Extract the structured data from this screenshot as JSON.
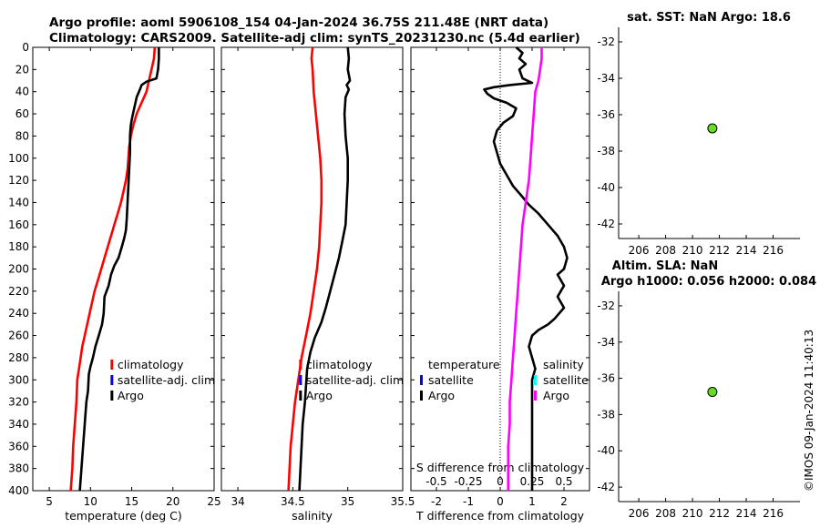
{
  "header": {
    "line1": "Argo profile: aoml 5906108_154 04-Jan-2024 36.75S 211.48E (NRT data)",
    "line2": "Climatology: CARS2009. Satellite-adj clim: synTS_20231230.nc (5.4d earlier)"
  },
  "watermark": "©IMOS 09-Jan-2024 11:40:13",
  "colors": {
    "red": "#ff0000",
    "blue": "#0000ff",
    "black": "#000000",
    "magenta": "#ff00ff",
    "cyan": "#00ffff",
    "marker": "#66dd22"
  },
  "chart_data": [
    {
      "id": "temp",
      "type": "line",
      "xlabel": "temperature (deg C)",
      "xlim": [
        3,
        25
      ],
      "xticks": [
        5,
        10,
        15,
        20,
        25
      ],
      "ylim": [
        0,
        400
      ],
      "yticks": [
        0,
        20,
        40,
        60,
        80,
        100,
        120,
        140,
        160,
        180,
        200,
        220,
        240,
        260,
        280,
        300,
        320,
        340,
        360,
        380,
        400
      ],
      "legend": [
        "climatology",
        "satellite-adj. clim",
        "Argo"
      ],
      "series": [
        {
          "name": "climatology",
          "color": "red",
          "points": [
            [
              17.8,
              0
            ],
            [
              17.7,
              10
            ],
            [
              17.4,
              20
            ],
            [
              17.1,
              30
            ],
            [
              16.8,
              40
            ],
            [
              16.2,
              50
            ],
            [
              15.6,
              60
            ],
            [
              15.2,
              70
            ],
            [
              14.9,
              80
            ],
            [
              14.7,
              90
            ],
            [
              14.6,
              100
            ],
            [
              14.5,
              110
            ],
            [
              14.3,
              120
            ],
            [
              14.0,
              130
            ],
            [
              13.7,
              140
            ],
            [
              13.3,
              150
            ],
            [
              12.9,
              160
            ],
            [
              12.5,
              170
            ],
            [
              12.1,
              180
            ],
            [
              11.7,
              190
            ],
            [
              11.3,
              200
            ],
            [
              10.9,
              210
            ],
            [
              10.5,
              220
            ],
            [
              10.2,
              230
            ],
            [
              9.9,
              240
            ],
            [
              9.6,
              250
            ],
            [
              9.3,
              260
            ],
            [
              9.0,
              270
            ],
            [
              8.8,
              280
            ],
            [
              8.6,
              290
            ],
            [
              8.4,
              300
            ],
            [
              8.3,
              320
            ],
            [
              8.1,
              340
            ],
            [
              7.9,
              360
            ],
            [
              7.8,
              380
            ],
            [
              7.6,
              400
            ]
          ]
        },
        {
          "name": "Argo",
          "color": "black",
          "points": [
            [
              18.3,
              0
            ],
            [
              18.3,
              10
            ],
            [
              18.2,
              20
            ],
            [
              18.0,
              28
            ],
            [
              16.8,
              31
            ],
            [
              16.2,
              34
            ],
            [
              16.0,
              38
            ],
            [
              15.6,
              45
            ],
            [
              15.3,
              55
            ],
            [
              15.1,
              62
            ],
            [
              14.9,
              70
            ],
            [
              14.8,
              80
            ],
            [
              14.8,
              95
            ],
            [
              14.7,
              110
            ],
            [
              14.6,
              125
            ],
            [
              14.5,
              140
            ],
            [
              14.4,
              155
            ],
            [
              14.3,
              165
            ],
            [
              14.1,
              172
            ],
            [
              13.8,
              180
            ],
            [
              13.4,
              190
            ],
            [
              12.9,
              197
            ],
            [
              12.5,
              205
            ],
            [
              12.2,
              215
            ],
            [
              11.7,
              225
            ],
            [
              11.6,
              240
            ],
            [
              11.4,
              250
            ],
            [
              11.0,
              260
            ],
            [
              10.6,
              270
            ],
            [
              10.3,
              280
            ],
            [
              10.0,
              288
            ],
            [
              9.8,
              295
            ],
            [
              9.7,
              310
            ],
            [
              9.5,
              320
            ],
            [
              9.3,
              340
            ],
            [
              9.1,
              360
            ],
            [
              8.9,
              380
            ],
            [
              8.7,
              400
            ]
          ]
        }
      ]
    },
    {
      "id": "sal",
      "type": "line",
      "xlabel": "salinity",
      "xlim": [
        33.85,
        35.5
      ],
      "xticks": [
        34,
        34.5,
        35,
        35.5
      ],
      "ylim": [
        0,
        400
      ],
      "yticks": [
        0,
        20,
        40,
        60,
        80,
        100,
        120,
        140,
        160,
        180,
        200,
        220,
        240,
        260,
        280,
        300,
        320,
        340,
        360,
        380,
        400
      ],
      "legend": [
        "climatology",
        "satellite-adj. clim",
        "Argo"
      ],
      "series": [
        {
          "name": "climatology",
          "color": "red",
          "points": [
            [
              34.68,
              0
            ],
            [
              34.67,
              10
            ],
            [
              34.68,
              20
            ],
            [
              34.69,
              40
            ],
            [
              34.71,
              60
            ],
            [
              34.73,
              80
            ],
            [
              34.75,
              100
            ],
            [
              34.76,
              120
            ],
            [
              34.76,
              140
            ],
            [
              34.75,
              160
            ],
            [
              34.74,
              180
            ],
            [
              34.72,
              200
            ],
            [
              34.69,
              220
            ],
            [
              34.66,
              240
            ],
            [
              34.62,
              260
            ],
            [
              34.58,
              280
            ],
            [
              34.55,
              300
            ],
            [
              34.52,
              320
            ],
            [
              34.5,
              340
            ],
            [
              34.48,
              360
            ],
            [
              34.47,
              380
            ],
            [
              34.46,
              400
            ]
          ]
        },
        {
          "name": "Argo",
          "color": "black",
          "points": [
            [
              35.0,
              0
            ],
            [
              35.01,
              10
            ],
            [
              35.0,
              20
            ],
            [
              35.02,
              30
            ],
            [
              34.99,
              34
            ],
            [
              35.01,
              38
            ],
            [
              34.98,
              45
            ],
            [
              34.97,
              60
            ],
            [
              34.98,
              80
            ],
            [
              35.0,
              100
            ],
            [
              35.0,
              120
            ],
            [
              34.99,
              140
            ],
            [
              34.98,
              160
            ],
            [
              34.95,
              175
            ],
            [
              34.92,
              190
            ],
            [
              34.88,
              205
            ],
            [
              34.84,
              220
            ],
            [
              34.8,
              235
            ],
            [
              34.76,
              248
            ],
            [
              34.7,
              262
            ],
            [
              34.66,
              275
            ],
            [
              34.63,
              290
            ],
            [
              34.62,
              305
            ],
            [
              34.61,
              320
            ],
            [
              34.59,
              340
            ],
            [
              34.58,
              360
            ],
            [
              34.57,
              380
            ],
            [
              34.56,
              400
            ]
          ]
        }
      ]
    },
    {
      "id": "diff",
      "type": "line",
      "xlabel": "T difference from climatology",
      "top_label": "S difference from climatology",
      "xlim": [
        -2.8,
        2.8
      ],
      "xticks": [
        -2,
        -1,
        0,
        1,
        2
      ],
      "top_ticks": [
        "-0.5",
        "-0.25",
        "0",
        "0.25",
        "0.5"
      ],
      "top_tick_x": [
        -2,
        -1,
        0,
        1,
        2
      ],
      "ylim": [
        0,
        400
      ],
      "yticks": [
        0,
        20,
        40,
        60,
        80,
        100,
        120,
        140,
        160,
        180,
        200,
        220,
        240,
        260,
        280,
        300,
        320,
        340,
        360,
        380,
        400
      ],
      "legend_left": [
        "temperature",
        "satellite",
        "Argo"
      ],
      "legend_right": [
        "salinity",
        "satellite",
        "Argo"
      ],
      "series": [
        {
          "name": "T diff Argo",
          "color": "black",
          "points": [
            [
              0.5,
              0
            ],
            [
              0.7,
              5
            ],
            [
              0.6,
              10
            ],
            [
              0.8,
              15
            ],
            [
              0.6,
              20
            ],
            [
              0.7,
              28
            ],
            [
              1.0,
              32
            ],
            [
              0.3,
              34
            ],
            [
              -0.2,
              36
            ],
            [
              -0.5,
              38
            ],
            [
              -0.4,
              42
            ],
            [
              -0.2,
              46
            ],
            [
              0.2,
              50
            ],
            [
              0.5,
              55
            ],
            [
              0.4,
              62
            ],
            [
              0.1,
              68
            ],
            [
              -0.1,
              75
            ],
            [
              -0.2,
              85
            ],
            [
              -0.1,
              95
            ],
            [
              0.0,
              105
            ],
            [
              0.2,
              115
            ],
            [
              0.4,
              125
            ],
            [
              0.7,
              135
            ],
            [
              0.9,
              142
            ],
            [
              1.2,
              150
            ],
            [
              1.5,
              160
            ],
            [
              1.8,
              170
            ],
            [
              2.0,
              180
            ],
            [
              2.1,
              190
            ],
            [
              2.0,
              200
            ],
            [
              1.8,
              205
            ],
            [
              2.0,
              215
            ],
            [
              1.8,
              225
            ],
            [
              2.0,
              235
            ],
            [
              1.7,
              245
            ],
            [
              1.5,
              250
            ],
            [
              1.2,
              255
            ],
            [
              1.0,
              260
            ],
            [
              0.9,
              270
            ],
            [
              1.0,
              280
            ],
            [
              1.1,
              290
            ],
            [
              1.0,
              300
            ],
            [
              1.0,
              320
            ],
            [
              1.0,
              340
            ],
            [
              1.0,
              360
            ],
            [
              1.0,
              380
            ],
            [
              1.0,
              400
            ]
          ]
        },
        {
          "name": "S diff Argo",
          "color": "magenta",
          "points": [
            [
              1.3,
              0
            ],
            [
              1.3,
              10
            ],
            [
              1.25,
              20
            ],
            [
              1.2,
              30
            ],
            [
              1.1,
              40
            ],
            [
              1.05,
              60
            ],
            [
              1.0,
              80
            ],
            [
              0.95,
              100
            ],
            [
              0.9,
              120
            ],
            [
              0.8,
              140
            ],
            [
              0.7,
              160
            ],
            [
              0.65,
              180
            ],
            [
              0.6,
              200
            ],
            [
              0.55,
              220
            ],
            [
              0.5,
              240
            ],
            [
              0.45,
              260
            ],
            [
              0.4,
              280
            ],
            [
              0.35,
              300
            ],
            [
              0.3,
              320
            ],
            [
              0.3,
              340
            ],
            [
              0.25,
              360
            ],
            [
              0.25,
              380
            ],
            [
              0.25,
              400
            ]
          ]
        }
      ]
    },
    {
      "id": "sst_map",
      "type": "scatter",
      "title": "sat. SST: NaN Argo: 18.6",
      "xlim": [
        204.5,
        218
      ],
      "xticks": [
        206,
        208,
        210,
        212,
        214,
        216
      ],
      "ylim": [
        -42.8,
        -31.2
      ],
      "yticks": [
        -32,
        -34,
        -36,
        -38,
        -40,
        -42
      ],
      "point": [
        211.48,
        -36.75
      ]
    },
    {
      "id": "sla_map",
      "type": "scatter",
      "title": "Altim. SLA: NaN",
      "subtitle": "Argo h1000: 0.056 h2000: 0.084",
      "xlim": [
        204.5,
        218
      ],
      "xticks": [
        206,
        208,
        210,
        212,
        214,
        216
      ],
      "ylim": [
        -42.8,
        -31.2
      ],
      "yticks": [
        -32,
        -34,
        -36,
        -38,
        -40,
        -42
      ],
      "point": [
        211.48,
        -36.75
      ]
    }
  ]
}
